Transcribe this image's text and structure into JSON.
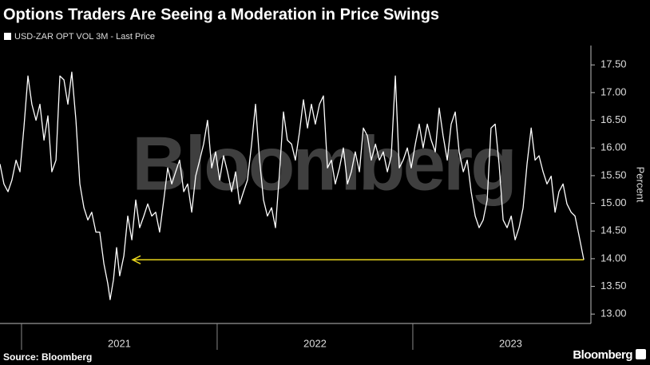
{
  "chart_data": {
    "type": "line",
    "title": "Options Traders Are Seeing a Moderation in Price Swings",
    "y_label": "Percent",
    "watermark": "Bloomberg",
    "source": "Source: Bloomberg",
    "logo": "Bloomberg",
    "x": [
      2020.89,
      2020.91,
      2020.931,
      2020.951,
      2020.972,
      2020.992,
      2021.012,
      2021.033,
      2021.053,
      2021.074,
      2021.094,
      2021.115,
      2021.135,
      2021.155,
      2021.176,
      2021.196,
      2021.217,
      2021.237,
      2021.257,
      2021.278,
      2021.298,
      2021.319,
      2021.339,
      2021.359,
      2021.38,
      2021.4,
      2021.421,
      2021.441,
      2021.453,
      2021.47,
      2021.486,
      2021.502,
      2021.523,
      2021.543,
      2021.564,
      2021.584,
      2021.604,
      2021.625,
      2021.645,
      2021.666,
      2021.686,
      2021.706,
      2021.727,
      2021.747,
      2021.768,
      2021.788,
      2021.808,
      2021.829,
      2021.849,
      2021.87,
      2021.89,
      2021.911,
      2021.931,
      2021.951,
      2021.972,
      2021.992,
      2022.013,
      2022.033,
      2022.053,
      2022.074,
      2022.094,
      2022.115,
      2022.135,
      2022.155,
      2022.176,
      2022.196,
      2022.217,
      2022.237,
      2022.257,
      2022.278,
      2022.298,
      2022.319,
      2022.339,
      2022.359,
      2022.38,
      2022.4,
      2022.421,
      2022.441,
      2022.462,
      2022.482,
      2022.502,
      2022.523,
      2022.543,
      2022.564,
      2022.584,
      2022.604,
      2022.625,
      2022.645,
      2022.666,
      2022.686,
      2022.706,
      2022.727,
      2022.747,
      2022.768,
      2022.788,
      2022.809,
      2022.829,
      2022.849,
      2022.87,
      2022.89,
      2022.911,
      2022.931,
      2022.951,
      2022.972,
      2022.992,
      2023.013,
      2023.033,
      2023.053,
      2023.074,
      2023.094,
      2023.115,
      2023.135,
      2023.155,
      2023.176,
      2023.196,
      2023.217,
      2023.237,
      2023.258,
      2023.278,
      2023.298,
      2023.319,
      2023.339,
      2023.36,
      2023.38,
      2023.4,
      2023.421,
      2023.441,
      2023.462,
      2023.482,
      2023.503,
      2023.523,
      2023.543,
      2023.564,
      2023.584,
      2023.605,
      2023.625,
      2023.645,
      2023.666,
      2023.686,
      2023.707,
      2023.727,
      2023.747,
      2023.768,
      2023.788,
      2023.809,
      2023.829,
      2023.85,
      2023.874
    ],
    "series": [
      {
        "name": "USD-ZAR OPT VOL 3M - Last Price",
        "color": "#ffffff",
        "values": [
          15.71,
          15.35,
          15.21,
          15.42,
          15.78,
          15.57,
          16.36,
          17.3,
          16.79,
          16.5,
          16.79,
          16.14,
          16.58,
          15.57,
          15.78,
          17.3,
          17.23,
          16.79,
          17.37,
          16.5,
          15.35,
          14.92,
          14.7,
          14.84,
          14.48,
          14.48,
          13.91,
          13.55,
          13.26,
          13.62,
          14.2,
          13.69,
          14.05,
          14.77,
          14.34,
          15.06,
          14.56,
          14.77,
          14.99,
          14.77,
          14.84,
          14.48,
          15.06,
          15.64,
          15.35,
          15.57,
          15.78,
          15.21,
          15.35,
          14.84,
          15.49,
          15.78,
          16.07,
          16.5,
          15.64,
          15.93,
          15.42,
          15.86,
          15.57,
          15.21,
          15.57,
          14.99,
          15.21,
          15.42,
          16.07,
          16.79,
          15.78,
          15.06,
          14.77,
          14.92,
          14.56,
          15.57,
          16.65,
          16.14,
          16.07,
          15.78,
          16.29,
          16.87,
          16.36,
          16.79,
          16.43,
          16.79,
          16.94,
          15.64,
          15.78,
          15.35,
          15.64,
          16.0,
          15.35,
          15.57,
          15.93,
          15.57,
          16.36,
          16.22,
          15.78,
          16.07,
          15.78,
          15.93,
          15.57,
          15.86,
          17.3,
          15.64,
          15.78,
          16.0,
          15.64,
          16.07,
          16.43,
          16.0,
          16.43,
          16.14,
          15.93,
          16.72,
          16.22,
          15.78,
          16.43,
          16.65,
          15.93,
          15.57,
          15.78,
          15.21,
          14.77,
          14.56,
          14.7,
          15.06,
          16.36,
          16.43,
          15.71,
          14.7,
          14.56,
          14.77,
          14.34,
          14.56,
          14.92,
          15.71,
          16.36,
          15.78,
          15.86,
          15.57,
          15.35,
          15.49,
          14.84,
          15.21,
          15.35,
          14.99,
          14.84,
          14.77,
          14.41,
          13.98
        ]
      }
    ],
    "annotation_color": "#e8d51c",
    "xlim": [
      2020.89,
      2023.89
    ],
    "xticks": [
      {
        "value": 2021.5,
        "label": "2021"
      },
      {
        "value": 2022.5,
        "label": "2022"
      },
      {
        "value": 2023.5,
        "label": "2023"
      }
    ],
    "ylim": [
      12.83,
      17.85
    ],
    "yticks": [
      {
        "value": 13,
        "label": "13.00"
      },
      {
        "value": 13.5,
        "label": "13.50"
      },
      {
        "value": 14,
        "label": "14.00"
      },
      {
        "value": 14.5,
        "label": "14.50"
      },
      {
        "value": 15,
        "label": "15.00"
      },
      {
        "value": 15.5,
        "label": "15.50"
      },
      {
        "value": 16,
        "label": "16.00"
      },
      {
        "value": 16.5,
        "label": "16.50"
      },
      {
        "value": 17,
        "label": "17.00"
      },
      {
        "value": 17.5,
        "label": "17.50"
      }
    ],
    "grid": false
  }
}
